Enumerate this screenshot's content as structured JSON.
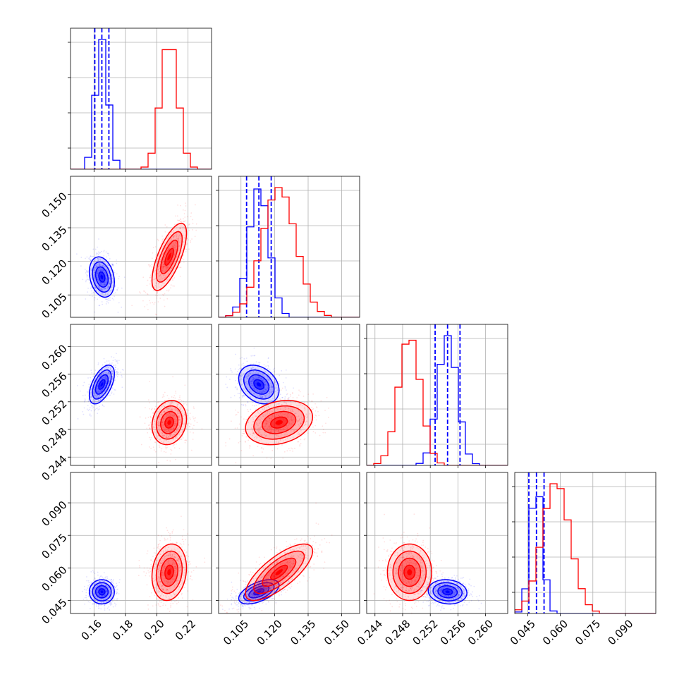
{
  "chart_data": {
    "type": "corner",
    "series": [
      {
        "color": "#0000ff",
        "means": [
          0.165,
          0.113,
          0.2545,
          0.049
        ],
        "sigmas": [
          0.004,
          0.0045,
          0.0014,
          0.0028
        ],
        "correlations": {
          "1-0": -0.25,
          "2-0": 0.55,
          "2-1": -0.3,
          "3-0": 0.0,
          "3-1": 0.55,
          "3-2": -0.1
        },
        "quantile_lines": [
          [
            0.1605,
            0.165,
            0.1695
          ],
          [
            0.1075,
            0.113,
            0.1185
          ],
          [
            0.2527,
            0.2545,
            0.2563
          ],
          [
            0.0455,
            0.049,
            0.0525
          ]
        ]
      },
      {
        "color": "#ff0000",
        "means": [
          0.208,
          0.122,
          0.249,
          0.058
        ],
        "sigmas": [
          0.0055,
          0.0075,
          0.0016,
          0.0065
        ],
        "correlations": {
          "1-0": 0.7,
          "2-0": 0.15,
          "2-1": 0.25,
          "3-0": 0.15,
          "3-1": 0.75,
          "3-2": 0.0
        },
        "quantile_lines": []
      }
    ],
    "axes": [
      {
        "range": [
          0.145,
          0.235
        ],
        "ticks": [
          0.16,
          0.18,
          0.2,
          0.22
        ],
        "tick_labels": [
          "0.16",
          "0.18",
          "0.20",
          "0.22"
        ]
      },
      {
        "range": [
          0.095,
          0.158
        ],
        "ticks": [
          0.105,
          0.12,
          0.135,
          0.15
        ],
        "tick_labels": [
          "0.105",
          "0.120",
          "0.135",
          "0.150"
        ]
      },
      {
        "range": [
          0.2428,
          0.2632
        ],
        "ticks": [
          0.244,
          0.248,
          0.252,
          0.256,
          0.26
        ],
        "tick_labels": [
          "0.244",
          "0.248",
          "0.252",
          "0.256",
          "0.260"
        ]
      },
      {
        "range": [
          0.039,
          0.104
        ],
        "ticks": [
          0.045,
          0.06,
          0.075,
          0.09
        ],
        "tick_labels": [
          "0.045",
          "0.060",
          "0.075",
          "0.090"
        ]
      }
    ],
    "grid": true
  }
}
